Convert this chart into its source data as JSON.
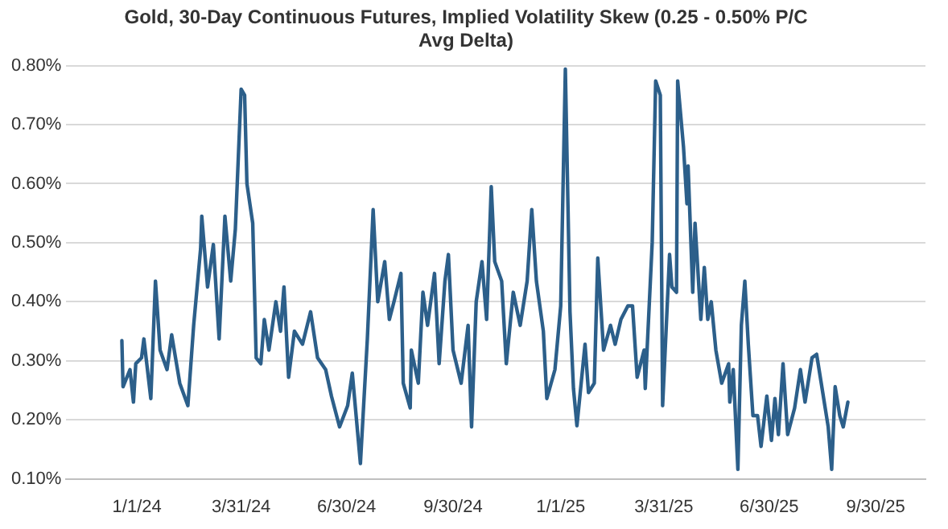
{
  "chart_data": {
    "type": "line",
    "title": "Gold, 30-Day Continuous Futures, Implied Volatility Skew (0.25 - 0.50% P/C Avg Delta)",
    "x": [
      "2023-12-19",
      "2023-12-20",
      "2023-12-26",
      "2023-12-29",
      "2023-12-31",
      "2024-01-05",
      "2024-01-07",
      "2024-01-13",
      "2024-01-17",
      "2024-01-21",
      "2024-01-27",
      "2024-01-31",
      "2024-02-07",
      "2024-02-14",
      "2024-02-19",
      "2024-02-25",
      "2024-02-26",
      "2024-03-02",
      "2024-03-07",
      "2024-03-12",
      "2024-03-17",
      "2024-03-22",
      "2024-03-26",
      "2024-03-31",
      "2024-04-03",
      "2024-04-05",
      "2024-04-10",
      "2024-04-13",
      "2024-04-17",
      "2024-04-20",
      "2024-04-24",
      "2024-04-30",
      "2024-05-04",
      "2024-05-07",
      "2024-05-11",
      "2024-05-16",
      "2024-05-23",
      "2024-05-30",
      "2024-06-05",
      "2024-06-12",
      "2024-06-17",
      "2024-06-24",
      "2024-07-01",
      "2024-07-05",
      "2024-07-12",
      "2024-07-18",
      "2024-07-23",
      "2024-07-27",
      "2024-08-02",
      "2024-08-06",
      "2024-08-10",
      "2024-08-16",
      "2024-08-18",
      "2024-08-24",
      "2024-08-25",
      "2024-08-31",
      "2024-09-04",
      "2024-09-08",
      "2024-09-14",
      "2024-09-18",
      "2024-09-23",
      "2024-09-26",
      "2024-09-30",
      "2024-10-07",
      "2024-10-13",
      "2024-10-16",
      "2024-10-20",
      "2024-10-25",
      "2024-10-29",
      "2024-11-02",
      "2024-11-05",
      "2024-11-11",
      "2024-11-15",
      "2024-11-21",
      "2024-11-27",
      "2024-12-03",
      "2024-12-07",
      "2024-12-11",
      "2024-12-17",
      "2024-12-20",
      "2024-12-27",
      "2025-01-01",
      "2025-01-05",
      "2025-01-09",
      "2025-01-12",
      "2025-01-15",
      "2025-01-22",
      "2025-01-25",
      "2025-01-30",
      "2025-02-02",
      "2025-02-07",
      "2025-02-13",
      "2025-02-17",
      "2025-02-22",
      "2025-02-28",
      "2025-03-04",
      "2025-03-08",
      "2025-03-14",
      "2025-03-15",
      "2025-03-21",
      "2025-03-24",
      "2025-03-28",
      "2025-03-30",
      "2025-04-05",
      "2025-04-07",
      "2025-04-11",
      "2025-04-12",
      "2025-04-17",
      "2025-04-20",
      "2025-04-21",
      "2025-04-25",
      "2025-04-27",
      "2025-05-02",
      "2025-05-05",
      "2025-05-08",
      "2025-05-11",
      "2025-05-15",
      "2025-05-20",
      "2025-05-26",
      "2025-05-27",
      "2025-05-30",
      "2025-06-03",
      "2025-06-06",
      "2025-06-09",
      "2025-06-12",
      "2025-06-16",
      "2025-06-20",
      "2025-06-23",
      "2025-06-28",
      "2025-07-02",
      "2025-07-05",
      "2025-07-08",
      "2025-07-12",
      "2025-07-16",
      "2025-07-22",
      "2025-07-27",
      "2025-07-31",
      "2025-08-06",
      "2025-08-10",
      "2025-08-14",
      "2025-08-20",
      "2025-08-23",
      "2025-08-26",
      "2025-08-30",
      "2025-09-02",
      "2025-09-06"
    ],
    "values": [
      0.334,
      0.256,
      0.285,
      0.23,
      0.295,
      0.305,
      0.337,
      0.236,
      0.435,
      0.318,
      0.285,
      0.344,
      0.262,
      0.224,
      0.36,
      0.49,
      0.545,
      0.425,
      0.497,
      0.337,
      0.545,
      0.435,
      0.523,
      0.76,
      0.75,
      0.6,
      0.533,
      0.305,
      0.295,
      0.37,
      0.318,
      0.4,
      0.35,
      0.425,
      0.272,
      0.35,
      0.328,
      0.383,
      0.305,
      0.285,
      0.24,
      0.188,
      0.224,
      0.279,
      0.126,
      0.337,
      0.556,
      0.4,
      0.468,
      0.37,
      0.4,
      0.448,
      0.262,
      0.22,
      0.318,
      0.262,
      0.416,
      0.36,
      0.448,
      0.295,
      0.435,
      0.48,
      0.318,
      0.262,
      0.36,
      0.188,
      0.4,
      0.468,
      0.37,
      0.595,
      0.468,
      0.435,
      0.295,
      0.416,
      0.36,
      0.435,
      0.556,
      0.435,
      0.35,
      0.236,
      0.285,
      0.393,
      0.794,
      0.383,
      0.253,
      0.19,
      0.328,
      0.246,
      0.262,
      0.474,
      0.318,
      0.36,
      0.328,
      0.37,
      0.393,
      0.393,
      0.272,
      0.318,
      0.253,
      0.5,
      0.774,
      0.75,
      0.224,
      0.48,
      0.425,
      0.416,
      0.774,
      0.663,
      0.566,
      0.63,
      0.416,
      0.533,
      0.37,
      0.458,
      0.37,
      0.4,
      0.318,
      0.262,
      0.295,
      0.23,
      0.285,
      0.116,
      0.36,
      0.435,
      0.328,
      0.207,
      0.207,
      0.155,
      0.24,
      0.165,
      0.236,
      0.175,
      0.295,
      0.175,
      0.22,
      0.285,
      0.23,
      0.305,
      0.311,
      0.262,
      0.188,
      0.116,
      0.256,
      0.207,
      0.188,
      0.23
    ],
    "color": "#2c5f8a",
    "line_style": "solid",
    "marker": "none",
    "xlim": [
      "2023-11-01",
      "2025-11-12"
    ],
    "xticks": [
      {
        "value": "2024-01-01",
        "label": "1/1/24"
      },
      {
        "value": "2024-03-31",
        "label": "3/31/24"
      },
      {
        "value": "2024-06-30",
        "label": "6/30/24"
      },
      {
        "value": "2024-09-30",
        "label": "9/30/24"
      },
      {
        "value": "2025-01-01",
        "label": "1/1/25"
      },
      {
        "value": "2025-03-31",
        "label": "3/31/25"
      },
      {
        "value": "2025-06-30",
        "label": "6/30/25"
      },
      {
        "value": "2025-09-30",
        "label": "9/30/25"
      }
    ],
    "ylim": [
      0.1,
      0.8
    ],
    "yticks": [
      {
        "value": 0.1,
        "label": "0.10%"
      },
      {
        "value": 0.2,
        "label": "0.20%"
      },
      {
        "value": 0.3,
        "label": "0.30%"
      },
      {
        "value": 0.4,
        "label": "0.40%"
      },
      {
        "value": 0.5,
        "label": "0.50%"
      },
      {
        "value": 0.6,
        "label": "0.60%"
      },
      {
        "value": 0.7,
        "label": "0.70%"
      },
      {
        "value": 0.8,
        "label": "0.80%"
      }
    ],
    "grid": "y",
    "legend": false
  }
}
